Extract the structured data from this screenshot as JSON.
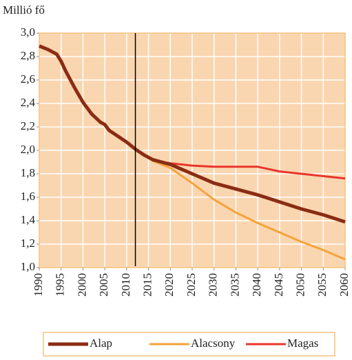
{
  "chart_data": {
    "type": "line",
    "y_axis_label": "Millió fő",
    "x": [
      1990,
      1992,
      1994,
      1995,
      1996,
      1998,
      2000,
      2002,
      2004,
      2005,
      2006,
      2008,
      2010,
      2012,
      2014,
      2016,
      2018,
      2020,
      2025,
      2030,
      2035,
      2040,
      2045,
      2050,
      2055,
      2060
    ],
    "series": [
      {
        "name": "Alap",
        "color": "#8b2c14",
        "values": [
          2.89,
          2.86,
          2.82,
          2.76,
          2.68,
          2.54,
          2.41,
          2.31,
          2.24,
          2.22,
          2.17,
          2.12,
          2.07,
          2.01,
          1.96,
          1.92,
          1.9,
          1.88,
          1.8,
          1.72,
          1.67,
          1.62,
          1.56,
          1.5,
          1.45,
          1.39
        ]
      },
      {
        "name": "Alacsony",
        "color": "#f5a33a",
        "values": [
          null,
          null,
          null,
          null,
          null,
          null,
          null,
          null,
          null,
          null,
          null,
          null,
          null,
          2.01,
          1.96,
          1.91,
          1.88,
          1.85,
          1.72,
          1.58,
          1.47,
          1.38,
          1.3,
          1.22,
          1.15,
          1.07
        ]
      },
      {
        "name": "Magas",
        "color": "#e8352b",
        "values": [
          null,
          null,
          null,
          null,
          null,
          null,
          null,
          null,
          null,
          null,
          null,
          null,
          null,
          2.01,
          1.96,
          1.92,
          1.9,
          1.89,
          1.87,
          1.86,
          1.86,
          1.86,
          1.82,
          1.8,
          1.78,
          1.76
        ]
      }
    ],
    "xlim": [
      1990,
      2060
    ],
    "xticks": [
      1990,
      1995,
      2000,
      2005,
      2010,
      2015,
      2020,
      2025,
      2030,
      2035,
      2040,
      2045,
      2050,
      2055,
      2060
    ],
    "ylim": [
      1,
      3
    ],
    "yticks": [
      {
        "value": 1,
        "label": "1,0"
      },
      {
        "value": 1.2,
        "label": "1,2"
      },
      {
        "value": 1.4,
        "label": "1,4"
      },
      {
        "value": 1.6,
        "label": "1,6"
      },
      {
        "value": 1.8,
        "label": "1,8"
      },
      {
        "value": 2,
        "label": "2,0"
      },
      {
        "value": 2.2,
        "label": "2,2"
      },
      {
        "value": 2.4,
        "label": "2,4"
      },
      {
        "value": 2.6,
        "label": "2,6"
      },
      {
        "value": 2.8,
        "label": "2,8"
      },
      {
        "value": 3,
        "label": "3,0"
      }
    ],
    "vline": 2012,
    "grid": true,
    "plot_background": "#fad6b0",
    "legend": "bottom"
  }
}
